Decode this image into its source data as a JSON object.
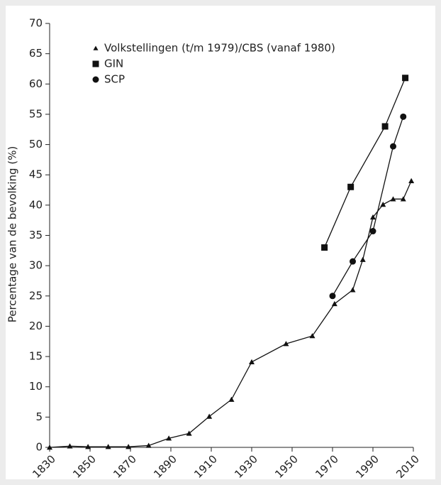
{
  "chart_data": {
    "type": "line",
    "ylabel": "Percentage van de bevolking (%)",
    "xlim": [
      1830,
      2010
    ],
    "xticks": [
      1830,
      1850,
      1870,
      1890,
      1910,
      1930,
      1950,
      1970,
      1990,
      2010
    ],
    "ylim": [
      0,
      70
    ],
    "yticks": [
      0,
      5,
      10,
      15,
      20,
      25,
      30,
      35,
      40,
      45,
      50,
      55,
      60,
      65,
      70
    ],
    "legend": "upper left",
    "grid": false,
    "series": [
      {
        "name": "Volkstellingen (t/m 1979)/CBS (vanaf 1980)",
        "color": "#111111",
        "marker": "triangle",
        "x": [
          1830,
          1840,
          1849,
          1859,
          1869,
          1879,
          1889,
          1899,
          1909,
          1920,
          1930,
          1947,
          1960,
          1971,
          1980,
          1985,
          1990,
          1995,
          2000,
          2005,
          2009
        ],
        "values": [
          0,
          0.2,
          0.1,
          0.1,
          0.1,
          0.3,
          1.5,
          2.3,
          5.1,
          7.9,
          14.1,
          17.1,
          18.4,
          23.7,
          26.0,
          31.0,
          38.0,
          40.1,
          41.0,
          41.0,
          44.0
        ]
      },
      {
        "name": "GIN",
        "color": "#111111",
        "marker": "square",
        "x": [
          1966,
          1979,
          1996,
          2006
        ],
        "values": [
          33,
          43,
          53,
          61
        ]
      },
      {
        "name": "SCP",
        "color": "#111111",
        "marker": "circle",
        "x": [
          1970,
          1980,
          1990,
          2000,
          2005
        ],
        "values": [
          25,
          30.7,
          35.7,
          49.7,
          54.6
        ]
      }
    ]
  }
}
